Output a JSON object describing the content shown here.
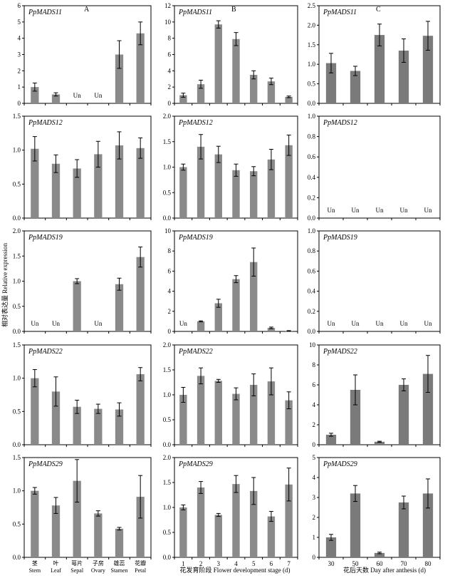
{
  "figure": {
    "y_axis_label": "相对表达量 Relative expression",
    "x_titles": [
      "",
      "花发育阶段 Flower development stage (d)",
      "花后天数 Day after anthesis (d)"
    ],
    "panel_labels": [
      "A",
      "B",
      "C"
    ],
    "un_label": "Un"
  },
  "chart_data": [
    {
      "type": "bar",
      "title": "PpMADS11",
      "panel": "A",
      "row": 0,
      "col": 0,
      "ylim": [
        0,
        6
      ],
      "yticks": [
        0,
        1,
        2,
        3,
        4,
        5,
        6
      ],
      "ytick_labels": [
        "0",
        "1",
        "2",
        "3",
        "4",
        "5",
        "6"
      ],
      "categories": [
        "茎 Stem",
        "叶 Leaf",
        "萼片 Sepal",
        "子房 Ovary",
        "雄蕊 Stamen",
        "花瓣 Petal"
      ],
      "values": [
        1.0,
        0.55,
        null,
        null,
        3.0,
        4.3
      ],
      "errors": [
        0.25,
        0.1,
        null,
        null,
        0.85,
        0.7
      ]
    },
    {
      "type": "bar",
      "title": "PpMADS11",
      "panel": "B",
      "row": 0,
      "col": 1,
      "ylim": [
        0,
        12
      ],
      "yticks": [
        0,
        2,
        4,
        6,
        8,
        10,
        12
      ],
      "ytick_labels": [
        "0",
        "2",
        "4",
        "6",
        "8",
        "10",
        "12"
      ],
      "categories": [
        "1",
        "2",
        "3",
        "4",
        "5",
        "6",
        "7"
      ],
      "values": [
        1.0,
        2.35,
        9.7,
        7.9,
        3.5,
        2.7,
        0.8
      ],
      "errors": [
        0.25,
        0.5,
        0.45,
        0.8,
        0.5,
        0.4,
        0.1
      ]
    },
    {
      "type": "bar",
      "title": "PpMADS11",
      "panel": "C",
      "row": 0,
      "col": 2,
      "ylim": [
        0,
        2.5
      ],
      "yticks": [
        0,
        0.5,
        1,
        1.5,
        2,
        2.5
      ],
      "ytick_labels": [
        "0.0",
        "0.5",
        "1.0",
        "1.5",
        "2.0",
        "2.5"
      ],
      "categories": [
        "30",
        "50",
        "60",
        "70",
        "80"
      ],
      "values": [
        1.03,
        0.83,
        1.75,
        1.35,
        1.73
      ],
      "errors": [
        0.25,
        0.12,
        0.28,
        0.3,
        0.37
      ]
    },
    {
      "type": "bar",
      "title": "PpMADS12",
      "row": 1,
      "col": 0,
      "ylim": [
        0,
        1.5
      ],
      "yticks": [
        0,
        0.5,
        1,
        1.5
      ],
      "ytick_labels": [
        "0.0",
        "0.5",
        "1.0",
        "1.5"
      ],
      "categories": [
        "茎 Stem",
        "叶 Leaf",
        "萼片 Sepal",
        "子房 Ovary",
        "雄蕊 Stamen",
        "花瓣 Petal"
      ],
      "values": [
        1.02,
        0.8,
        0.73,
        0.94,
        1.07,
        1.03
      ],
      "errors": [
        0.18,
        0.13,
        0.13,
        0.19,
        0.2,
        0.15
      ]
    },
    {
      "type": "bar",
      "title": "PpMADS12",
      "row": 1,
      "col": 1,
      "ylim": [
        0,
        2.0
      ],
      "yticks": [
        0,
        0.5,
        1,
        1.5,
        2
      ],
      "ytick_labels": [
        "0.0",
        "0.5",
        "1.0",
        "1.5",
        "2.0"
      ],
      "categories": [
        "1",
        "2",
        "3",
        "4",
        "5",
        "6",
        "7"
      ],
      "values": [
        1.0,
        1.4,
        1.25,
        0.94,
        0.92,
        1.15,
        1.43
      ],
      "errors": [
        0.06,
        0.24,
        0.16,
        0.12,
        0.09,
        0.2,
        0.2
      ]
    },
    {
      "type": "bar",
      "title": "PpMADS12",
      "row": 1,
      "col": 2,
      "ylim": [
        0,
        1.0
      ],
      "yticks": [
        0,
        0.2,
        0.4,
        0.6,
        0.8,
        1
      ],
      "ytick_labels": [
        "0.0",
        "0.2",
        "0.4",
        "0.6",
        "0.8",
        "1.0"
      ],
      "categories": [
        "30",
        "50",
        "60",
        "70",
        "80"
      ],
      "values": [
        null,
        null,
        null,
        null,
        null
      ],
      "errors": [
        null,
        null,
        null,
        null,
        null
      ]
    },
    {
      "type": "bar",
      "title": "PpMADS19",
      "row": 2,
      "col": 0,
      "ylim": [
        0,
        2.0
      ],
      "yticks": [
        0,
        0.5,
        1,
        1.5,
        2
      ],
      "ytick_labels": [
        "0.0",
        "0.5",
        "1.0",
        "1.5",
        "2.0"
      ],
      "categories": [
        "茎 Stem",
        "叶 Leaf",
        "萼片 Sepal",
        "子房 Ovary",
        "雄蕊 Stamen",
        "花瓣 Petal"
      ],
      "values": [
        null,
        null,
        1.0,
        null,
        0.94,
        1.48
      ],
      "errors": [
        null,
        null,
        0.05,
        null,
        0.12,
        0.2
      ]
    },
    {
      "type": "bar",
      "title": "PpMADS19",
      "row": 2,
      "col": 1,
      "ylim": [
        0,
        10
      ],
      "yticks": [
        0,
        2,
        4,
        6,
        8,
        10
      ],
      "ytick_labels": [
        "0",
        "2",
        "4",
        "6",
        "8",
        "10"
      ],
      "categories": [
        "1",
        "2",
        "3",
        "4",
        "5",
        "6",
        "7"
      ],
      "values": [
        null,
        1.0,
        2.8,
        5.2,
        6.9,
        0.35,
        0.05
      ],
      "errors": [
        null,
        0.05,
        0.4,
        0.35,
        1.4,
        0.08,
        0.03
      ]
    },
    {
      "type": "bar",
      "title": "PpMADS19",
      "row": 2,
      "col": 2,
      "ylim": [
        0,
        1.0
      ],
      "yticks": [
        0,
        0.2,
        0.4,
        0.6,
        0.8,
        1
      ],
      "ytick_labels": [
        "0.0",
        "0.2",
        "0.4",
        "0.6",
        "0.8",
        "1.0"
      ],
      "categories": [
        "30",
        "50",
        "60",
        "70",
        "80"
      ],
      "values": [
        null,
        null,
        null,
        null,
        null
      ],
      "errors": [
        null,
        null,
        null,
        null,
        null
      ]
    },
    {
      "type": "bar",
      "title": "PpMADS22",
      "row": 3,
      "col": 0,
      "ylim": [
        0,
        1.5
      ],
      "yticks": [
        0,
        0.5,
        1,
        1.5
      ],
      "ytick_labels": [
        "0.0",
        "0.5",
        "1.0",
        "1.5"
      ],
      "categories": [
        "茎 Stem",
        "叶 Leaf",
        "萼片 Sepal",
        "子房 Ovary",
        "雄蕊 Stamen",
        "花瓣 Petal"
      ],
      "values": [
        1.0,
        0.8,
        0.57,
        0.54,
        0.53,
        1.06
      ],
      "errors": [
        0.13,
        0.22,
        0.1,
        0.07,
        0.1,
        0.1
      ]
    },
    {
      "type": "bar",
      "title": "PpMADS22",
      "row": 3,
      "col": 1,
      "ylim": [
        0,
        2.0
      ],
      "yticks": [
        0,
        0.5,
        1,
        1.5,
        2
      ],
      "ytick_labels": [
        "0.0",
        "0.5",
        "1.0",
        "1.5",
        "2.0"
      ],
      "categories": [
        "1",
        "2",
        "3",
        "4",
        "5",
        "6",
        "7"
      ],
      "values": [
        1.0,
        1.38,
        1.28,
        1.02,
        1.2,
        1.27,
        0.89
      ],
      "errors": [
        0.15,
        0.16,
        0.03,
        0.12,
        0.22,
        0.27,
        0.17
      ]
    },
    {
      "type": "bar",
      "title": "PpMADS22",
      "row": 3,
      "col": 2,
      "ylim": [
        0,
        10
      ],
      "yticks": [
        0,
        2,
        4,
        6,
        8,
        10
      ],
      "ytick_labels": [
        "0",
        "2",
        "4",
        "6",
        "8",
        "10"
      ],
      "categories": [
        "30",
        "50",
        "60",
        "70",
        "80"
      ],
      "values": [
        1.0,
        5.5,
        0.3,
        6.0,
        7.1
      ],
      "errors": [
        0.15,
        1.5,
        0.05,
        0.6,
        1.85
      ]
    },
    {
      "type": "bar",
      "title": "PpMADS29",
      "row": 4,
      "col": 0,
      "ylim": [
        0,
        1.5
      ],
      "yticks": [
        0,
        0.5,
        1,
        1.5
      ],
      "ytick_labels": [
        "0.0",
        "0.5",
        "1.0",
        "1.5"
      ],
      "categories": [
        "茎 Stem",
        "叶 Leaf",
        "萼片 Sepal",
        "子房 Ovary",
        "雄蕊 Stamen",
        "花瓣 Petal"
      ],
      "values": [
        1.0,
        0.78,
        1.15,
        0.66,
        0.43,
        0.91
      ],
      "errors": [
        0.05,
        0.12,
        0.32,
        0.04,
        0.02,
        0.32
      ]
    },
    {
      "type": "bar",
      "title": "PpMADS29",
      "row": 4,
      "col": 1,
      "ylim": [
        0,
        2.0
      ],
      "yticks": [
        0,
        0.5,
        1,
        1.5,
        2
      ],
      "ytick_labels": [
        "0.0",
        "0.5",
        "1.0",
        "1.5",
        "2.0"
      ],
      "categories": [
        "1",
        "2",
        "3",
        "4",
        "5",
        "6",
        "7"
      ],
      "values": [
        1.0,
        1.4,
        0.85,
        1.47,
        1.33,
        0.82,
        1.46
      ],
      "errors": [
        0.05,
        0.12,
        0.03,
        0.17,
        0.27,
        0.1,
        0.33
      ]
    },
    {
      "type": "bar",
      "title": "PpMADS29",
      "row": 4,
      "col": 2,
      "ylim": [
        0,
        5
      ],
      "yticks": [
        0,
        1,
        2,
        3,
        4,
        5
      ],
      "ytick_labels": [
        "0",
        "1",
        "2",
        "3",
        "4",
        "5"
      ],
      "categories": [
        "30",
        "50",
        "60",
        "70",
        "80"
      ],
      "values": [
        1.0,
        3.2,
        0.22,
        2.75,
        3.2
      ],
      "errors": [
        0.15,
        0.4,
        0.04,
        0.32,
        0.73
      ]
    }
  ]
}
